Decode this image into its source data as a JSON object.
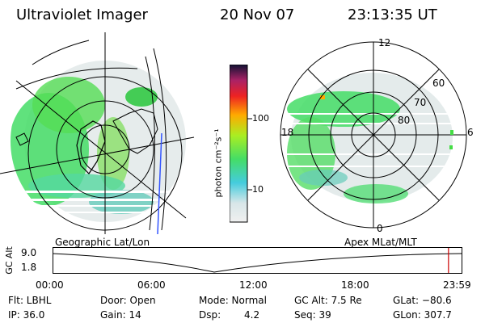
{
  "header": {
    "title": "Ultraviolet Imager",
    "date": "20 Nov 07",
    "time": "23:13:35 UT"
  },
  "colorbar": {
    "unit_label": "photon cm⁻²s⁻¹",
    "ticks": [
      "100",
      "10"
    ]
  },
  "polar_plot": {
    "mlt_labels": {
      "top": "12",
      "right": "6",
      "left": "18",
      "bottom": "0"
    },
    "lat_labels": [
      "60",
      "70",
      "80"
    ]
  },
  "timeline": {
    "left_title": "Geographic Lat/Lon",
    "right_title": "Apex MLat/MLT",
    "y_label": "GC Alt",
    "y_ticks": [
      "9.0",
      "1.8"
    ],
    "x_ticks": [
      "00:00",
      "06:00",
      "12:00",
      "18:00",
      "23:59"
    ],
    "current_time_fraction": 0.968
  },
  "info": {
    "flt": "Flt: LBHL",
    "ip": "IP: 36.0",
    "door": "Door: Open",
    "gain": "Gain: 14",
    "mode": "Mode: Normal",
    "dsp_label": "Dsp:",
    "dsp_value": "4.2",
    "gc_alt": "GC Alt: 7.5 Re",
    "seq": "Seq: 39",
    "glat": "GLat: −80.6",
    "glon": "GLon: 307.7"
  }
}
